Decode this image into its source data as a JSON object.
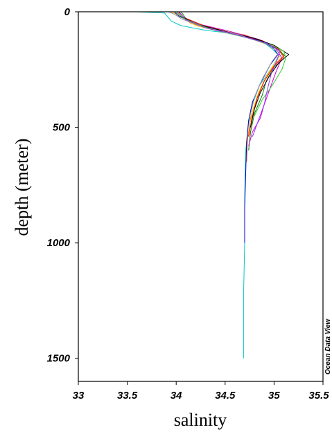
{
  "chart_data": {
    "type": "line",
    "xlabel": "salinity",
    "ylabel": "depth (meter)",
    "credit": "Ocean Data View",
    "xlim": [
      33,
      35.5
    ],
    "ylim": [
      0,
      1600
    ],
    "y_inverted": true,
    "x_ticks": [
      "33",
      "33.5",
      "34",
      "34.5",
      "35",
      "35.5"
    ],
    "x_tick_values": [
      33,
      33.5,
      34,
      34.5,
      35,
      35.5
    ],
    "y_ticks": [
      "0",
      "500",
      "1000",
      "1500"
    ],
    "y_tick_values": [
      0,
      500,
      1000,
      1500
    ],
    "grid": false,
    "legend": "none",
    "series": [
      {
        "color": "#00c8c8",
        "points": [
          [
            33.6,
            0
          ],
          [
            33.88,
            5
          ],
          [
            33.95,
            40
          ],
          [
            34.05,
            60
          ],
          [
            34.3,
            80
          ],
          [
            34.6,
            95
          ],
          [
            34.85,
            120
          ],
          [
            34.98,
            160
          ],
          [
            35.05,
            190
          ],
          [
            34.98,
            240
          ],
          [
            34.85,
            320
          ],
          [
            34.78,
            400
          ],
          [
            34.74,
            480
          ],
          [
            34.71,
            600
          ],
          [
            34.7,
            800
          ],
          [
            34.7,
            1000
          ],
          [
            34.69,
            1200
          ],
          [
            34.69,
            1500
          ]
        ]
      },
      {
        "color": "#ff7f00",
        "points": [
          [
            34.0,
            0
          ],
          [
            34.05,
            20
          ],
          [
            34.15,
            50
          ],
          [
            34.4,
            80
          ],
          [
            34.7,
            100
          ],
          [
            34.9,
            130
          ],
          [
            35.05,
            160
          ],
          [
            35.1,
            190
          ],
          [
            35.0,
            230
          ],
          [
            34.9,
            300
          ],
          [
            34.82,
            380
          ],
          [
            34.76,
            460
          ],
          [
            34.73,
            550
          ],
          [
            34.72,
            650
          ]
        ]
      },
      {
        "color": "#ffd000",
        "points": [
          [
            33.95,
            0
          ],
          [
            34.02,
            15
          ],
          [
            34.2,
            60
          ],
          [
            34.5,
            90
          ],
          [
            34.8,
            115
          ],
          [
            35.0,
            150
          ],
          [
            35.08,
            180
          ],
          [
            35.02,
            215
          ],
          [
            34.92,
            280
          ],
          [
            34.84,
            350
          ],
          [
            34.78,
            430
          ],
          [
            34.75,
            520
          ]
        ]
      },
      {
        "color": "#008000",
        "points": [
          [
            34.05,
            0
          ],
          [
            34.1,
            30
          ],
          [
            34.3,
            65
          ],
          [
            34.6,
            95
          ],
          [
            34.9,
            130
          ],
          [
            35.05,
            165
          ],
          [
            35.12,
            195
          ],
          [
            35.0,
            240
          ],
          [
            34.92,
            300
          ],
          [
            34.88,
            360
          ],
          [
            34.8,
            440
          ],
          [
            34.76,
            520
          ],
          [
            34.74,
            600
          ]
        ]
      },
      {
        "color": "#cc00cc",
        "points": [
          [
            34.0,
            0
          ],
          [
            34.06,
            25
          ],
          [
            34.25,
            55
          ],
          [
            34.55,
            85
          ],
          [
            34.85,
            120
          ],
          [
            35.02,
            160
          ],
          [
            35.08,
            200
          ],
          [
            35.02,
            260
          ],
          [
            34.96,
            330
          ],
          [
            34.9,
            400
          ],
          [
            34.86,
            460
          ],
          [
            34.78,
            520
          ],
          [
            34.74,
            580
          ]
        ]
      },
      {
        "color": "#0000cc",
        "points": [
          [
            33.98,
            0
          ],
          [
            34.03,
            20
          ],
          [
            34.2,
            50
          ],
          [
            34.45,
            80
          ],
          [
            34.75,
            110
          ],
          [
            34.98,
            150
          ],
          [
            35.04,
            185
          ],
          [
            34.96,
            230
          ],
          [
            34.86,
            310
          ],
          [
            34.78,
            390
          ],
          [
            34.74,
            470
          ],
          [
            34.72,
            560
          ],
          [
            34.71,
            700
          ],
          [
            34.7,
            850
          ],
          [
            34.7,
            1000
          ]
        ]
      },
      {
        "color": "#ff0000",
        "points": [
          [
            34.02,
            0
          ],
          [
            34.08,
            25
          ],
          [
            34.28,
            60
          ],
          [
            34.6,
            95
          ],
          [
            34.88,
            125
          ],
          [
            35.04,
            160
          ],
          [
            35.1,
            195
          ],
          [
            35.0,
            235
          ],
          [
            34.9,
            300
          ],
          [
            34.83,
            370
          ],
          [
            34.78,
            450
          ],
          [
            34.74,
            540
          ]
        ]
      },
      {
        "color": "#000000",
        "points": [
          [
            34.0,
            0
          ],
          [
            34.05,
            20
          ],
          [
            34.22,
            55
          ],
          [
            34.5,
            85
          ],
          [
            34.8,
            115
          ],
          [
            35.0,
            145
          ],
          [
            35.15,
            185
          ],
          [
            35.05,
            220
          ],
          [
            34.95,
            280
          ],
          [
            34.86,
            350
          ],
          [
            34.8,
            420
          ],
          [
            34.76,
            500
          ]
        ]
      },
      {
        "color": "#999999",
        "points": [
          [
            33.92,
            0
          ],
          [
            33.98,
            10
          ],
          [
            34.05,
            30
          ],
          [
            34.3,
            70
          ],
          [
            34.65,
            100
          ],
          [
            34.92,
            140
          ],
          [
            35.05,
            175
          ],
          [
            34.98,
            215
          ],
          [
            34.88,
            290
          ],
          [
            34.8,
            370
          ],
          [
            34.75,
            460
          ]
        ]
      },
      {
        "color": "#33cc33",
        "points": [
          [
            34.0,
            0
          ],
          [
            34.08,
            30
          ],
          [
            34.35,
            75
          ],
          [
            34.7,
            110
          ],
          [
            34.95,
            140
          ],
          [
            35.1,
            170
          ],
          [
            35.12,
            200
          ],
          [
            35.08,
            250
          ],
          [
            34.98,
            320
          ],
          [
            34.88,
            380
          ],
          [
            34.8,
            450
          ]
        ]
      },
      {
        "color": "#9933ff",
        "points": [
          [
            34.03,
            0
          ],
          [
            34.1,
            35
          ],
          [
            34.3,
            70
          ],
          [
            34.62,
            100
          ],
          [
            34.92,
            135
          ],
          [
            35.06,
            170
          ],
          [
            35.03,
            210
          ],
          [
            34.97,
            270
          ],
          [
            34.93,
            340
          ],
          [
            34.9,
            400
          ],
          [
            34.84,
            470
          ],
          [
            34.78,
            540
          ]
        ]
      }
    ]
  }
}
